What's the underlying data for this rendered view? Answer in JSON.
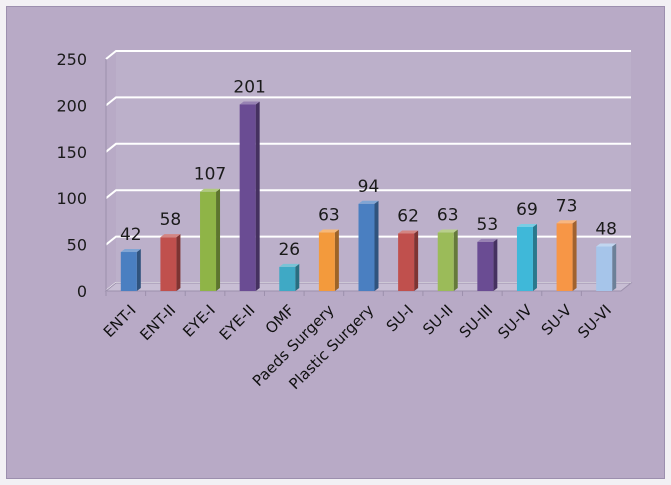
{
  "chart_data": {
    "type": "bar",
    "title": "",
    "xlabel": "",
    "ylabel": "",
    "ylim": [
      0,
      250
    ],
    "yticks": [
      0,
      50,
      100,
      150,
      200,
      250
    ],
    "grid": true,
    "legend": "none",
    "categories": [
      "ENT-I",
      "ENT-II",
      "EYE-I",
      "EYE-II",
      "OMF",
      "Paeds Surgery",
      "Plastic Surgery",
      "SU-I",
      "SU-II",
      "SU-III",
      "SU-IV",
      "SU-V",
      "SU-VI"
    ],
    "values": [
      42,
      58,
      107,
      201,
      26,
      63,
      94,
      62,
      63,
      53,
      69,
      73,
      48
    ],
    "colors": [
      "#4a7fc1",
      "#c0504d",
      "#8fb447",
      "#6a4c93",
      "#3fa9c5",
      "#f39a3c",
      "#4a7fc1",
      "#c0504d",
      "#9bbb59",
      "#6a4c93",
      "#3fb8d9",
      "#f79646",
      "#a6c5ea"
    ]
  }
}
